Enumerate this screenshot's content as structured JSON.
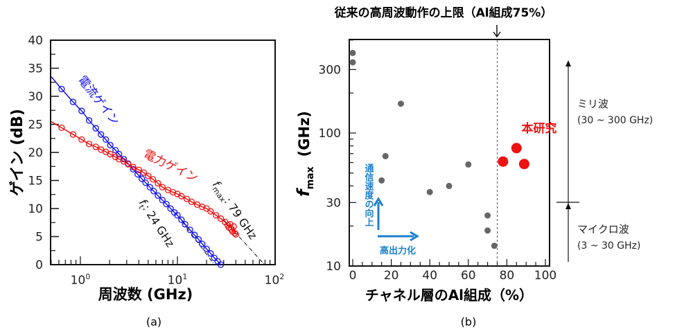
{
  "chart_data": [
    {
      "type": "line",
      "panel_label": "(a)",
      "xlabel": "周波数 (GHz)",
      "ylabel": "ゲイン (dB)",
      "xscale": "log",
      "xlim": [
        0.5,
        100
      ],
      "ylim": [
        0,
        40
      ],
      "yticks": [
        "0",
        "5",
        "10",
        "15",
        "20",
        "25",
        "30",
        "35",
        "40"
      ],
      "xticks": [
        {
          "base": "10",
          "exp": "0"
        },
        {
          "base": "10",
          "exp": "1"
        },
        {
          "base": "10",
          "exp": "2"
        }
      ],
      "grid": false,
      "series": [
        {
          "name": "電流ゲイン",
          "color": "#1010ee",
          "x": [
            0.5,
            0.64,
            0.84,
            1.03,
            1.23,
            1.44,
            1.63,
            1.83,
            2.03,
            2.3,
            2.5,
            2.8,
            3.1,
            3.5,
            3.9,
            4.3,
            4.7,
            5.2,
            5.7,
            6.3,
            7,
            7.7,
            8.5,
            9.3,
            10,
            11,
            12,
            13.5,
            15,
            16.5,
            18,
            20,
            22,
            24,
            26,
            28
          ],
          "y": [
            33.5,
            31.3,
            29.0,
            27.4,
            25.7,
            24.3,
            23.2,
            22.3,
            21.3,
            20.4,
            19.7,
            18.8,
            18.0,
            17.0,
            16.1,
            15.3,
            14.6,
            13.8,
            13.1,
            12.3,
            11.5,
            10.8,
            10.0,
            9.3,
            8.8,
            8.0,
            7.2,
            6.2,
            5.3,
            4.5,
            3.7,
            2.8,
            2.0,
            1.2,
            0.6,
            0.0
          ]
        },
        {
          "name": "電力ゲイン",
          "color": "#ee1010",
          "x": [
            0.5,
            0.64,
            0.84,
            1.03,
            1.23,
            1.44,
            1.63,
            1.83,
            2.03,
            2.3,
            2.5,
            2.8,
            3.1,
            3.5,
            4,
            4.5,
            5,
            5.6,
            6.3,
            7,
            8,
            9,
            10,
            11,
            12.5,
            14,
            16,
            18,
            20,
            22,
            25,
            28,
            31,
            33,
            34,
            35,
            36,
            37,
            38,
            39,
            40
          ],
          "y": [
            25.5,
            24.4,
            23.2,
            22.3,
            21.5,
            21.0,
            20.5,
            20.1,
            19.7,
            19.2,
            18.8,
            18.4,
            17.9,
            17.4,
            16.9,
            16.4,
            15.8,
            15.2,
            14.5,
            13.8,
            13.3,
            12.9,
            12.6,
            12.2,
            11.7,
            11.2,
            10.7,
            10.3,
            10.0,
            9.5,
            8.8,
            8.2,
            7.6,
            7.0,
            6.6,
            7.2,
            6.3,
            5.9,
            6.8,
            5.6,
            5.4
          ]
        }
      ],
      "extrapolations": [
        {
          "label_f": "f",
          "label_sub": "t",
          "label_value": ": 24 GHz",
          "x": [
            10,
            24
          ],
          "y": [
            8.8,
            0
          ]
        },
        {
          "label_f": "f",
          "label_sub": "max",
          "label_value": ": 79 GHz",
          "x": [
            30,
            79
          ],
          "y": [
            8.0,
            0
          ]
        }
      ]
    },
    {
      "type": "scatter",
      "panel_label": "(b)",
      "title": "従来の高周波動作の上限（Al組成75%）",
      "xlabel": "チャネル層のAl組成（%）",
      "ylabel_f": "f",
      "ylabel_sub": "max",
      "ylabel_unit": "(GHz)",
      "yscale": "log",
      "xlim": [
        -2,
        102
      ],
      "ylim": [
        10,
        500
      ],
      "xticks": [
        "0",
        "20",
        "40",
        "60",
        "80",
        "100"
      ],
      "yticks": [
        "10",
        "30",
        "100",
        "300"
      ],
      "limit_line_x": 75,
      "series": [
        {
          "color": "#666666",
          "x": [
            0,
            0,
            25,
            17,
            15,
            40,
            50,
            60,
            70,
            70,
            73.5
          ],
          "y": [
            400,
            340,
            166,
            67,
            44,
            36,
            40,
            58,
            24,
            18.5,
            14.2
          ]
        },
        {
          "name": "本研究",
          "color": "#ee1111",
          "x": [
            78,
            85,
            89
          ],
          "y": [
            61,
            77,
            58.5
          ]
        }
      ],
      "annotations": {
        "speed_up": "通信速度の向上",
        "high_power": "高出力化",
        "arrow_color": "#1a7fcf",
        "mm_wave": "ミリ波",
        "mm_range": "(30 ~ 300 GHz)",
        "micro_wave": "マイクロ波",
        "micro_range": "(3 ~ 30 GHz)",
        "band_boundary_ghz": 30
      }
    }
  ]
}
